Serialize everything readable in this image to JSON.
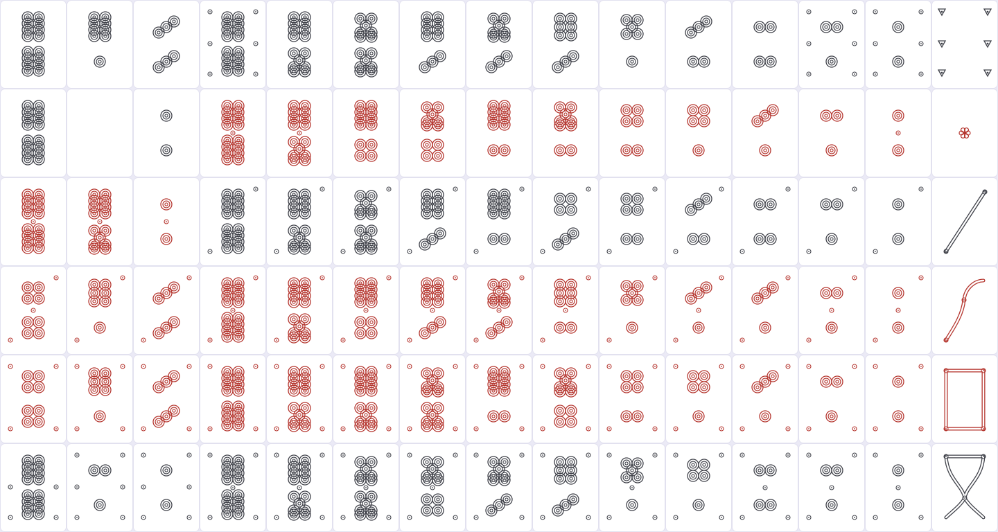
{
  "colors": {
    "black": "#3f4149",
    "red": "#b5362f",
    "background": "#ebeaf6",
    "tile": "#ffffff"
  },
  "board": {
    "columns": 15,
    "rows": [
      {
        "tiles": [
          {
            "top": "8",
            "bottom": "8",
            "color": "black",
            "corners": []
          },
          {
            "top": "8",
            "bottom": "1",
            "color": "black",
            "corners": []
          },
          {
            "top": "3",
            "bottom": "3",
            "color": "black",
            "corners": []
          },
          {
            "top": "8",
            "bottom": "8",
            "color": "black",
            "corners": [
              "tl",
              "tr",
              "ml",
              "mr",
              "bl",
              "br"
            ]
          },
          {
            "top": "8",
            "bottom": "7",
            "color": "black",
            "corners": []
          },
          {
            "top": "7",
            "bottom": "7",
            "color": "black",
            "corners": []
          },
          {
            "top": "8",
            "bottom": "3",
            "color": "black",
            "corners": []
          },
          {
            "top": "7",
            "bottom": "3",
            "color": "black",
            "corners": []
          },
          {
            "top": "6",
            "bottom": "3",
            "color": "black",
            "corners": []
          },
          {
            "top": "5",
            "bottom": "1",
            "color": "black",
            "corners": []
          },
          {
            "top": "3",
            "bottom": "2",
            "color": "black",
            "corners": []
          },
          {
            "top": "2",
            "bottom": "2",
            "color": "black",
            "corners": []
          },
          {
            "top": "2",
            "bottom": "1",
            "color": "black",
            "corners": [
              "tl",
              "tr",
              "ml",
              "mr",
              "bl",
              "br"
            ]
          },
          {
            "top": "1",
            "bottom": "1",
            "color": "black",
            "corners": [
              "tl",
              "tr",
              "ml",
              "mr",
              "bl",
              "br"
            ]
          },
          {
            "special": "windmill"
          }
        ]
      },
      {
        "tiles": [
          {
            "top": "8",
            "bottom": "8",
            "color": "black",
            "corners": []
          },
          {
            "special": "blank"
          },
          {
            "top": "1",
            "bottom": "1",
            "color": "black",
            "corners": []
          },
          {
            "top": "8",
            "bottom": "8",
            "color": "red",
            "mid": true,
            "corners": []
          },
          {
            "top": "8",
            "bottom": "7",
            "color": "red",
            "mid": true,
            "corners": []
          },
          {
            "top": "8",
            "bottom": "4",
            "color": "red",
            "corners": []
          },
          {
            "top": "7",
            "bottom": "4",
            "color": "red",
            "corners": []
          },
          {
            "top": "8",
            "bottom": "2",
            "color": "red",
            "corners": []
          },
          {
            "top": "7",
            "bottom": "2",
            "color": "red",
            "corners": []
          },
          {
            "top": "4",
            "bottom": "2",
            "color": "red",
            "corners": []
          },
          {
            "top": "4",
            "bottom": "1",
            "color": "red",
            "corners": []
          },
          {
            "top": "3",
            "bottom": "1",
            "color": "red",
            "corners": []
          },
          {
            "top": "2",
            "bottom": "1",
            "color": "red",
            "corners": []
          },
          {
            "top": "1",
            "bottom": "1",
            "color": "red",
            "mid": true,
            "corners": []
          },
          {
            "special": "flower"
          }
        ]
      },
      {
        "tiles": [
          {
            "top": "8",
            "bottom": "8",
            "color": "red",
            "mid": true,
            "corners": []
          },
          {
            "top": "8",
            "bottom": "7",
            "color": "red",
            "mid": true,
            "corners": []
          },
          {
            "top": "1",
            "bottom": "1",
            "color": "red",
            "mid": true,
            "corners": []
          },
          {
            "top": "8",
            "bottom": "8",
            "color": "black",
            "corners": [
              "tr",
              "bl"
            ]
          },
          {
            "top": "8",
            "bottom": "7",
            "color": "black",
            "corners": [
              "tr",
              "bl"
            ]
          },
          {
            "top": "7",
            "bottom": "7",
            "color": "black",
            "corners": [
              "tr",
              "bl"
            ]
          },
          {
            "top": "8",
            "bottom": "3",
            "color": "black",
            "corners": [
              "tr",
              "bl"
            ]
          },
          {
            "top": "8",
            "bottom": "2",
            "color": "black",
            "corners": [
              "tr",
              "bl"
            ]
          },
          {
            "top": "4",
            "bottom": "3",
            "color": "black",
            "corners": [
              "tr",
              "bl"
            ]
          },
          {
            "top": "4",
            "bottom": "2",
            "color": "black",
            "corners": [
              "tr",
              "bl"
            ]
          },
          {
            "top": "3",
            "bottom": "2",
            "color": "black",
            "corners": [
              "tr",
              "bl"
            ]
          },
          {
            "top": "2",
            "bottom": "2",
            "color": "black",
            "corners": [
              "tr",
              "bl"
            ]
          },
          {
            "top": "2",
            "bottom": "1",
            "color": "black",
            "corners": [
              "tr",
              "bl"
            ]
          },
          {
            "top": "1",
            "bottom": "1",
            "color": "black",
            "corners": [
              "tr",
              "bl"
            ]
          },
          {
            "special": "stick"
          }
        ]
      },
      {
        "tiles": [
          {
            "top": "4",
            "bottom": "4",
            "color": "red",
            "mid": true,
            "corners": [
              "tr",
              "bl"
            ]
          },
          {
            "top": "6",
            "bottom": "1",
            "color": "red",
            "corners": [
              "tr",
              "bl"
            ]
          },
          {
            "top": "3",
            "bottom": "3",
            "color": "red",
            "corners": [
              "tr",
              "bl"
            ]
          },
          {
            "top": "8",
            "bottom": "8",
            "color": "red",
            "mid": true,
            "corners": [
              "tr",
              "bl"
            ]
          },
          {
            "top": "8",
            "bottom": "7",
            "color": "red",
            "corners": [
              "tr",
              "bl"
            ]
          },
          {
            "top": "8",
            "bottom": "4",
            "color": "red",
            "mid": true,
            "corners": [
              "tr",
              "bl"
            ]
          },
          {
            "top": "8",
            "bottom": "3",
            "color": "red",
            "mid": true,
            "corners": [
              "tr",
              "bl"
            ]
          },
          {
            "top": "7",
            "bottom": "3",
            "color": "red",
            "mid": true,
            "corners": [
              "tr",
              "bl"
            ]
          },
          {
            "top": "6",
            "bottom": "2",
            "color": "red",
            "mid": true,
            "corners": [
              "tr",
              "bl"
            ]
          },
          {
            "top": "5",
            "bottom": "1",
            "color": "red",
            "corners": [
              "tr",
              "bl"
            ]
          },
          {
            "top": "3",
            "bottom": "1",
            "color": "red",
            "mid": true,
            "corners": [
              "tr",
              "bl"
            ]
          },
          {
            "top": "3",
            "bottom": "1",
            "color": "red",
            "corners": [
              "tr",
              "bl"
            ]
          },
          {
            "top": "2",
            "bottom": "1",
            "color": "red",
            "mid": true,
            "corners": [
              "tr",
              "bl"
            ]
          },
          {
            "top": "1",
            "bottom": "1",
            "color": "red",
            "mid": true,
            "corners": [
              "tr",
              "bl"
            ]
          },
          {
            "special": "bow"
          }
        ]
      },
      {
        "tiles": [
          {
            "top": "4",
            "bottom": "4",
            "color": "red",
            "corners": [
              "tl",
              "tr",
              "bl",
              "br"
            ]
          },
          {
            "top": "6",
            "bottom": "1",
            "color": "red",
            "corners": [
              "tl",
              "tr",
              "bl",
              "br"
            ]
          },
          {
            "top": "3",
            "bottom": "3",
            "color": "red",
            "corners": [
              "tl",
              "tr",
              "bl",
              "br"
            ]
          },
          {
            "top": "8",
            "bottom": "8",
            "color": "red",
            "corners": [
              "tl",
              "tr",
              "bl",
              "br"
            ]
          },
          {
            "top": "8",
            "bottom": "7",
            "color": "red",
            "corners": [
              "tl",
              "tr",
              "bl",
              "br"
            ]
          },
          {
            "top": "8",
            "bottom": "7",
            "color": "red",
            "corners": [
              "tl",
              "tr",
              "bl",
              "br"
            ]
          },
          {
            "top": "7",
            "bottom": "7",
            "color": "red",
            "corners": [
              "tl",
              "tr",
              "bl",
              "br"
            ]
          },
          {
            "top": "8",
            "bottom": "2",
            "color": "red",
            "corners": [
              "tl",
              "tr",
              "bl",
              "br"
            ]
          },
          {
            "top": "7",
            "bottom": "4",
            "color": "red",
            "corners": [
              "tl",
              "tr",
              "bl",
              "br"
            ]
          },
          {
            "top": "4",
            "bottom": "2",
            "color": "red",
            "corners": [
              "tl",
              "tr",
              "bl",
              "br"
            ]
          },
          {
            "top": "4",
            "bottom": "1",
            "color": "red",
            "corners": [
              "tl",
              "tr",
              "bl",
              "br"
            ]
          },
          {
            "top": "3",
            "bottom": "1",
            "color": "red",
            "corners": [
              "tl",
              "tr",
              "bl",
              "br"
            ]
          },
          {
            "top": "2",
            "bottom": "1",
            "color": "red",
            "corners": [
              "tl",
              "tr",
              "bl",
              "br"
            ]
          },
          {
            "top": "1",
            "bottom": "1",
            "color": "red",
            "corners": [
              "tl",
              "tr",
              "bl",
              "br"
            ]
          },
          {
            "special": "frame"
          }
        ]
      },
      {
        "tiles": [
          {
            "top": "8",
            "bottom": "8",
            "color": "black",
            "corners": [
              "ml",
              "mr",
              "bl",
              "br"
            ]
          },
          {
            "top": "2",
            "bottom": "1",
            "color": "black",
            "corners": [
              "tl",
              "tr",
              "ml",
              "mr",
              "bl",
              "br"
            ]
          },
          {
            "top": "1",
            "bottom": "1",
            "color": "black",
            "corners": [
              "tl",
              "tr",
              "ml",
              "mr",
              "bl",
              "br"
            ]
          },
          {
            "top": "8",
            "bottom": "8",
            "color": "black",
            "mid": true,
            "corners": [
              "tl",
              "tr",
              "bl",
              "br"
            ]
          },
          {
            "top": "8",
            "bottom": "7",
            "color": "black",
            "mid": true,
            "corners": [
              "tl",
              "tr",
              "bl",
              "br"
            ]
          },
          {
            "top": "7",
            "bottom": "7",
            "color": "black",
            "mid": true,
            "corners": [
              "tl",
              "tr",
              "bl",
              "br"
            ]
          },
          {
            "top": "7",
            "bottom": "4",
            "color": "black",
            "mid": true,
            "corners": [
              "tl",
              "tr",
              "bl",
              "br"
            ]
          },
          {
            "top": "7",
            "bottom": "3",
            "color": "black",
            "corners": [
              "tl",
              "tr",
              "bl",
              "br"
            ]
          },
          {
            "top": "6",
            "bottom": "3",
            "color": "black",
            "corners": [
              "tl",
              "tr",
              "bl",
              "br"
            ]
          },
          {
            "top": "5",
            "bottom": "1",
            "color": "black",
            "mid": true,
            "corners": [
              "tl",
              "tr",
              "bl",
              "br"
            ]
          },
          {
            "top": "4",
            "bottom": "1",
            "color": "black",
            "corners": [
              "tl",
              "tr",
              "bl",
              "br"
            ]
          },
          {
            "top": "2",
            "bottom": "2",
            "color": "black",
            "mid": true,
            "corners": [
              "tl",
              "tr",
              "bl",
              "br"
            ]
          },
          {
            "top": "2",
            "bottom": "1",
            "color": "black",
            "mid": true,
            "corners": [
              "tl",
              "tr",
              "bl",
              "br"
            ]
          },
          {
            "top": "1",
            "bottom": "1",
            "color": "black",
            "mid": true,
            "corners": [
              "tl",
              "tr",
              "bl",
              "br"
            ]
          },
          {
            "special": "hourglass"
          }
        ]
      }
    ]
  }
}
